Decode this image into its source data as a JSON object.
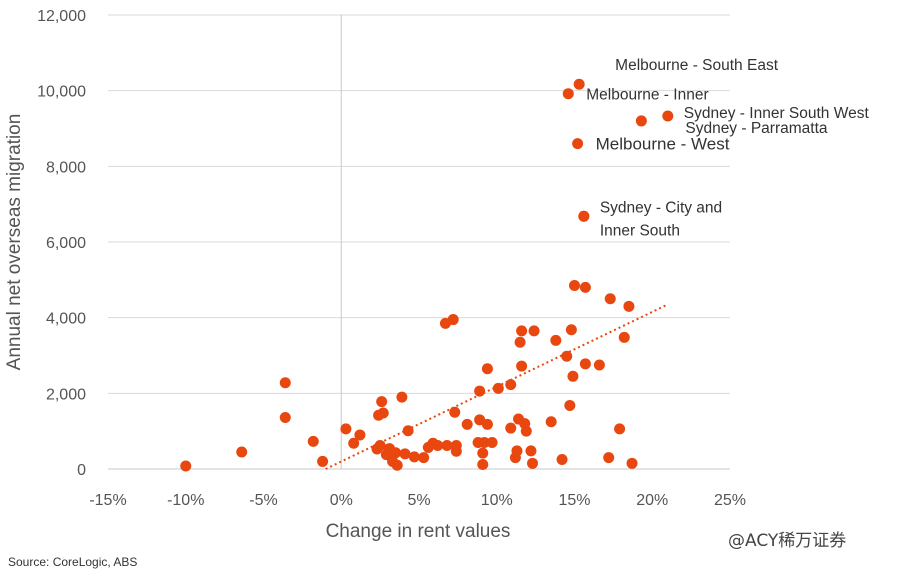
{
  "chart_data": {
    "type": "scatter",
    "title": "",
    "xlabel": "Change in rent values",
    "ylabel": "Annual net overseas migration",
    "xlim": [
      -15,
      25
    ],
    "ylim": [
      0,
      12000
    ],
    "x_ticks": [
      "-15%",
      "-10%",
      "-5%",
      "0%",
      "5%",
      "10%",
      "15%",
      "20%",
      "25%"
    ],
    "y_ticks": [
      "0",
      "2,000",
      "4,000",
      "6,000",
      "8,000",
      "10,000",
      "12,000"
    ],
    "grid": "horizontal",
    "marker_color": "#e8470f",
    "trendline": {
      "color": "#e8470f",
      "style": "dotted",
      "from": [
        -1,
        0
      ],
      "to": [
        21,
        4350
      ]
    },
    "points": [
      [
        -10,
        80
      ],
      [
        -6.4,
        450
      ],
      [
        -3.6,
        2280
      ],
      [
        -3.6,
        1360
      ],
      [
        -1.8,
        730
      ],
      [
        -1.2,
        200
      ],
      [
        0.3,
        1060
      ],
      [
        0.8,
        680
      ],
      [
        1.2,
        900
      ],
      [
        2.3,
        530
      ],
      [
        2.4,
        1420
      ],
      [
        2.5,
        620
      ],
      [
        2.6,
        1780
      ],
      [
        2.7,
        1480
      ],
      [
        2.9,
        380
      ],
      [
        3.1,
        540
      ],
      [
        3.3,
        200
      ],
      [
        3.5,
        430
      ],
      [
        3.6,
        100
      ],
      [
        3.9,
        1900
      ],
      [
        4.1,
        400
      ],
      [
        4.3,
        1010
      ],
      [
        4.7,
        320
      ],
      [
        5.3,
        300
      ],
      [
        5.6,
        570
      ],
      [
        5.9,
        680
      ],
      [
        6.2,
        620
      ],
      [
        6.8,
        620
      ],
      [
        6.7,
        3850
      ],
      [
        7.2,
        3950
      ],
      [
        7.3,
        1500
      ],
      [
        7.4,
        620
      ],
      [
        7.4,
        470
      ],
      [
        8.1,
        1180
      ],
      [
        8.8,
        700
      ],
      [
        8.9,
        1300
      ],
      [
        8.9,
        2060
      ],
      [
        9.1,
        420
      ],
      [
        9.1,
        120
      ],
      [
        9.2,
        700
      ],
      [
        9.4,
        2650
      ],
      [
        9.4,
        1180
      ],
      [
        9.7,
        700
      ],
      [
        10.1,
        2130
      ],
      [
        10.9,
        2230
      ],
      [
        10.9,
        1080
      ],
      [
        11.2,
        300
      ],
      [
        11.3,
        480
      ],
      [
        11.4,
        1320
      ],
      [
        11.5,
        3350
      ],
      [
        11.6,
        2720
      ],
      [
        11.6,
        3650
      ],
      [
        11.8,
        1200
      ],
      [
        11.9,
        1000
      ],
      [
        12.2,
        480
      ],
      [
        12.3,
        150
      ],
      [
        12.4,
        3650
      ],
      [
        13.5,
        1250
      ],
      [
        13.8,
        3400
      ],
      [
        14.2,
        250
      ],
      [
        14.5,
        2980
      ],
      [
        14.7,
        1680
      ],
      [
        14.8,
        3680
      ],
      [
        14.9,
        2450
      ],
      [
        15,
        4850
      ],
      [
        15.7,
        4800
      ],
      [
        15.7,
        2780
      ],
      [
        16.6,
        2750
      ],
      [
        17.2,
        300
      ],
      [
        17.3,
        4500
      ],
      [
        17.9,
        1060
      ],
      [
        18.2,
        3480
      ],
      [
        18.5,
        4300
      ],
      [
        18.7,
        150
      ],
      [
        15.6,
        6680
      ]
    ],
    "labeled_points": [
      {
        "x": 15.3,
        "y": 10170,
        "label": "Melbourne - South East",
        "dx": 36,
        "dy": -14,
        "big": false
      },
      {
        "x": 14.6,
        "y": 9920,
        "label": "Melbourne - Inner",
        "dx": 18,
        "dy": 6,
        "big": false
      },
      {
        "x": 21,
        "y": 9330,
        "label": "Sydney - Inner South West",
        "dx": 16,
        "dy": 2,
        "big": false
      },
      {
        "x": 19.3,
        "y": 9200,
        "label": "Sydney - Parramatta",
        "dx": 44,
        "dy": 12,
        "big": false
      },
      {
        "x": 15.2,
        "y": 8600,
        "label": "Melbourne - West",
        "dx": 18,
        "dy": 6,
        "big": true
      },
      {
        "x": 15.6,
        "y": 6680,
        "label": "Sydney - City and",
        "label2": "Inner South",
        "dx": 16,
        "dy": -4,
        "big": false
      }
    ]
  },
  "source_text": "Source: CoreLogic, ABS",
  "watermark_text": "@ACY稀万证券"
}
